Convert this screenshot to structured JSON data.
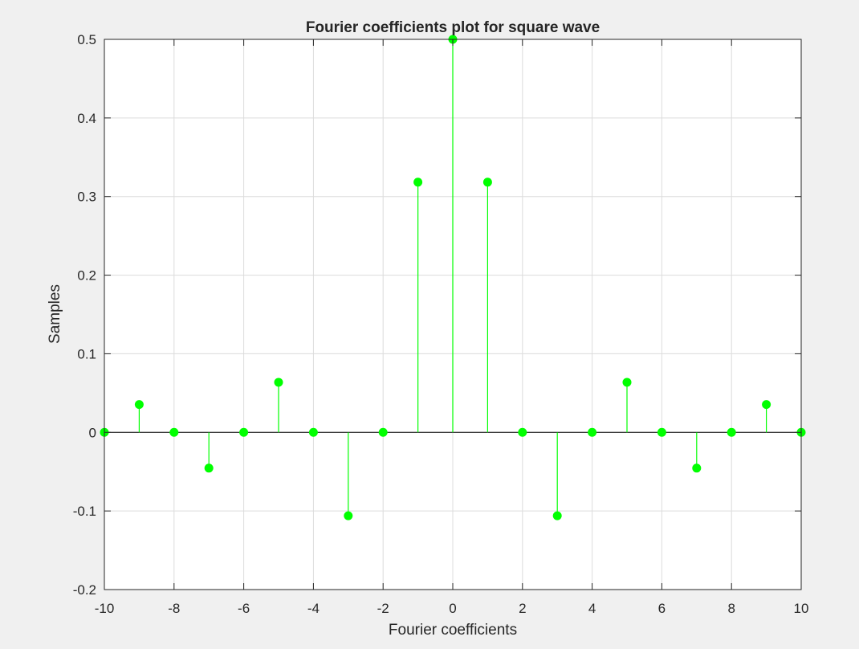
{
  "chart_data": {
    "type": "stem",
    "title": "Fourier coefficients plot for square wave",
    "xlabel": "Fourier coefficients",
    "ylabel": "Samples",
    "xlim": [
      -10,
      10
    ],
    "ylim": [
      -0.2,
      0.5
    ],
    "xticks": [
      -10,
      -8,
      -6,
      -4,
      -2,
      0,
      2,
      4,
      6,
      8,
      10
    ],
    "yticks": [
      -0.2,
      -0.1,
      0,
      0.1,
      0.2,
      0.3,
      0.4,
      0.5
    ],
    "xtick_labels": [
      "-10",
      "-8",
      "-6",
      "-4",
      "-2",
      "0",
      "2",
      "4",
      "6",
      "8",
      "10"
    ],
    "ytick_labels": [
      "-0.2",
      "-0.1",
      "0",
      "0.1",
      "0.2",
      "0.3",
      "0.4",
      "0.5"
    ],
    "grid": true,
    "series": [
      {
        "color": "#00ff00",
        "x": [
          -10,
          -9,
          -8,
          -7,
          -6,
          -5,
          -4,
          -3,
          -2,
          -1,
          0,
          1,
          2,
          3,
          4,
          5,
          6,
          7,
          8,
          9,
          10
        ],
        "y": [
          0,
          0.0354,
          0,
          -0.0455,
          0,
          0.0637,
          0,
          -0.1061,
          0,
          0.3183,
          0.5,
          0.3183,
          0,
          -0.1061,
          0,
          0.0637,
          0,
          -0.0455,
          0,
          0.0354,
          0
        ]
      }
    ]
  }
}
